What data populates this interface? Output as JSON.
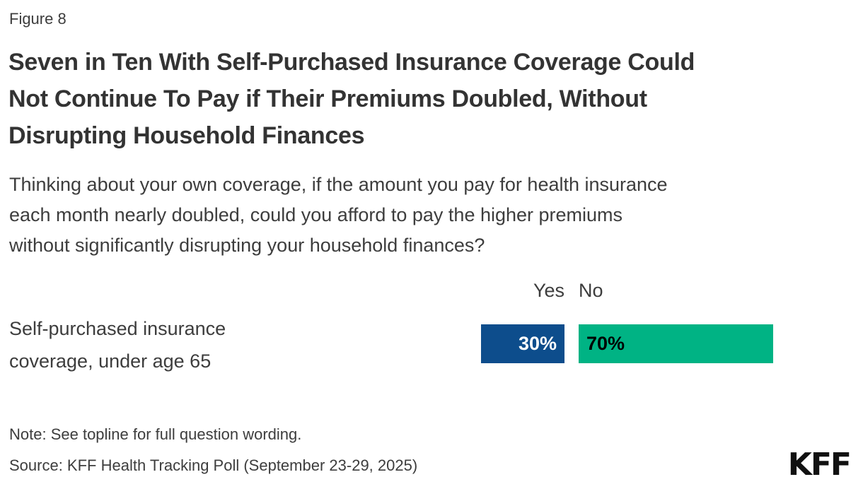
{
  "figure_label": "Figure 8",
  "header": {
    "title_lines": [
      "Seven in Ten With Self-Purchased Insurance Coverage Could",
      "Not Continue To Pay if Their Premiums Doubled, Without",
      "Disrupting Household Finances"
    ],
    "subtitle_lines": [
      "Thinking about your own coverage, if the amount you pay for health insurance",
      "each month nearly doubled, could you afford to pay the higher premiums",
      "without significantly disrupting your household finances?"
    ]
  },
  "chart_data": {
    "type": "bar",
    "orientation": "horizontal",
    "title": "Seven in Ten With Self-Purchased Insurance Coverage Could Not Continue To Pay if Their Premiums Doubled, Without Disrupting Household Finances",
    "subtitle": "Thinking about your own coverage, if the amount you pay for health insurance each month nearly doubled, could you afford to pay the higher premiums without significantly disrupting your household finances?",
    "categories": [
      "Self-purchased insurance coverage, under age 65"
    ],
    "series": [
      {
        "name": "Yes",
        "values": [
          30
        ],
        "color": "#0D4D8C"
      },
      {
        "name": "No",
        "values": [
          70
        ],
        "color": "#00B384"
      }
    ],
    "value_labels": [
      "30%",
      "70%"
    ],
    "unit": "%",
    "xlim": [
      0,
      100
    ],
    "legend_position": "top",
    "grid": false
  },
  "row_label_lines": [
    "Self-purchased insurance",
    "coverage, under age 65"
  ],
  "note": "Note: See topline for full question wording.",
  "source": "Source: KFF Health Tracking Poll (September 23-29, 2025)",
  "logo_text": "KFF",
  "colors": {
    "yes_bar": "#0D4D8C",
    "no_bar": "#00B384",
    "yes_value_text": "#FFFFFF",
    "no_value_text": "#000000",
    "title_text": "#333333",
    "body_text": "#3D3D3D",
    "logo_text": "#111111",
    "background": "#FFFFFF"
  }
}
